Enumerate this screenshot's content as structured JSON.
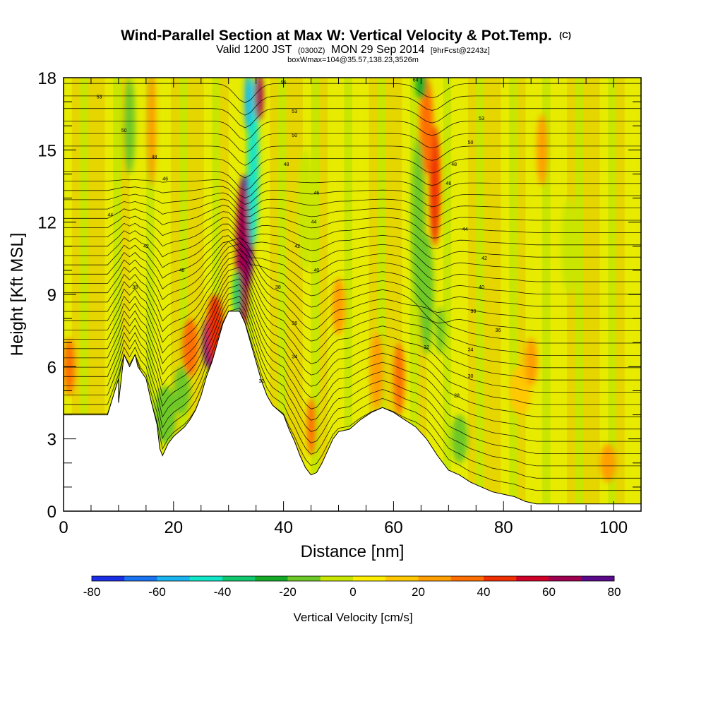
{
  "chart_data": {
    "type": "heatmap",
    "title": "Wind-Parallel Section at Max W: Vertical Velocity & Pot.Temp.",
    "title_superscript": "(C)",
    "subtitle_prefix": "Valid 1200 JST",
    "subtitle_zulu": "(0300Z)",
    "subtitle_date": "MON 29 Sep 2014",
    "subtitle_fcst": "[9hrFcst@2243z]",
    "subtitle_box": "boxWmax=104@35.57,138.23,3526m",
    "xlabel": "Distance [nm]",
    "ylabel": "Height [Kft MSL]",
    "xlim": [
      0,
      105
    ],
    "ylim": [
      0,
      18
    ],
    "x_ticks": [
      0,
      20,
      40,
      60,
      80,
      100
    ],
    "y_ticks": [
      0,
      3,
      6,
      9,
      12,
      15,
      18
    ],
    "colorbar": {
      "label": "Vertical Velocity [cm/s]",
      "range": [
        -80,
        80
      ],
      "step": 10,
      "ticks": [
        -80,
        -60,
        -40,
        -20,
        0,
        20,
        40,
        60,
        80
      ],
      "colors": [
        "#1a2ee6",
        "#1a73f0",
        "#1ab4f0",
        "#12e6c8",
        "#12c86e",
        "#14aa28",
        "#6ec828",
        "#c8e600",
        "#ffee00",
        "#ffc800",
        "#ff9f00",
        "#ff6e00",
        "#f03000",
        "#d00028",
        "#a00050",
        "#5a0a8a"
      ]
    },
    "terrain_profile": [
      [
        0,
        4
      ],
      [
        2,
        4
      ],
      [
        4,
        4
      ],
      [
        6,
        4
      ],
      [
        8,
        4
      ],
      [
        10,
        5.5
      ],
      [
        11,
        6.5
      ],
      [
        13,
        6.5
      ],
      [
        13.5,
        6
      ],
      [
        12,
        6
      ],
      [
        10,
        4.5
      ],
      [
        8,
        4
      ],
      [
        15,
        5.5
      ],
      [
        16,
        4.5
      ],
      [
        17,
        3.6
      ],
      [
        17.5,
        2.6
      ],
      [
        18,
        2.3
      ],
      [
        19,
        2.8
      ],
      [
        20,
        3.1
      ],
      [
        21,
        3.3
      ],
      [
        22,
        3.5
      ],
      [
        23,
        3.8
      ],
      [
        24,
        4.2
      ],
      [
        25,
        4.8
      ],
      [
        26,
        5.6
      ],
      [
        27,
        6.2
      ],
      [
        28,
        7
      ],
      [
        29,
        7.8
      ],
      [
        30,
        8.3
      ],
      [
        31,
        8.3
      ],
      [
        32,
        8.3
      ],
      [
        33,
        7.8
      ],
      [
        34,
        7
      ],
      [
        35,
        6.2
      ],
      [
        36,
        5.4
      ],
      [
        37,
        4.8
      ],
      [
        38,
        4.4
      ],
      [
        39,
        4.2
      ],
      [
        40,
        4
      ],
      [
        41,
        3.4
      ],
      [
        42,
        2.9
      ],
      [
        43,
        2.3
      ],
      [
        44,
        1.8
      ],
      [
        45,
        1.5
      ],
      [
        46,
        1.6
      ],
      [
        47,
        2
      ],
      [
        48,
        2.5
      ],
      [
        49,
        3
      ],
      [
        50,
        3.3
      ],
      [
        52,
        3.4
      ],
      [
        54,
        3.8
      ],
      [
        56,
        4.1
      ],
      [
        58,
        4.3
      ],
      [
        60,
        4.1
      ],
      [
        62,
        3.8
      ],
      [
        64,
        3.5
      ],
      [
        66,
        3
      ],
      [
        68,
        2.3
      ],
      [
        70,
        1.7
      ],
      [
        72,
        1.5
      ],
      [
        74,
        1.2
      ],
      [
        76,
        1
      ],
      [
        78,
        0.8
      ],
      [
        80,
        0.7
      ],
      [
        82,
        0.6
      ],
      [
        84,
        0.4
      ],
      [
        86,
        0.3
      ],
      [
        88,
        0.3
      ],
      [
        90,
        0.3
      ],
      [
        92,
        0.3
      ],
      [
        94,
        0.3
      ],
      [
        96,
        0.3
      ],
      [
        98,
        0.3
      ],
      [
        100,
        0.3
      ],
      [
        102,
        0.3
      ],
      [
        105,
        0.3
      ]
    ],
    "contour_labels": [
      {
        "x": 6.5,
        "y": 17.2,
        "text": "53"
      },
      {
        "x": 11,
        "y": 15.8,
        "text": "50"
      },
      {
        "x": 16.5,
        "y": 14.7,
        "text": "48"
      },
      {
        "x": 18.5,
        "y": 13.8,
        "text": "46"
      },
      {
        "x": 8.5,
        "y": 12.3,
        "text": "44"
      },
      {
        "x": 15,
        "y": 11,
        "text": "42"
      },
      {
        "x": 21.5,
        "y": 10,
        "text": "40"
      },
      {
        "x": 13,
        "y": 9.3,
        "text": "38"
      },
      {
        "x": 40,
        "y": 17.8,
        "text": "56"
      },
      {
        "x": 42,
        "y": 16.6,
        "text": "53"
      },
      {
        "x": 42,
        "y": 15.6,
        "text": "50"
      },
      {
        "x": 40.5,
        "y": 14.4,
        "text": "48"
      },
      {
        "x": 46,
        "y": 13.2,
        "text": "46"
      },
      {
        "x": 45.5,
        "y": 12,
        "text": "44"
      },
      {
        "x": 42.5,
        "y": 11,
        "text": "42"
      },
      {
        "x": 46,
        "y": 10,
        "text": "40"
      },
      {
        "x": 39,
        "y": 9.3,
        "text": "38"
      },
      {
        "x": 42,
        "y": 7.8,
        "text": "36"
      },
      {
        "x": 42,
        "y": 6.4,
        "text": "34"
      },
      {
        "x": 36,
        "y": 5.4,
        "text": "32"
      },
      {
        "x": 64,
        "y": 17.9,
        "text": "64"
      },
      {
        "x": 76,
        "y": 16.3,
        "text": "53"
      },
      {
        "x": 74,
        "y": 15.3,
        "text": "50"
      },
      {
        "x": 71,
        "y": 14.4,
        "text": "48"
      },
      {
        "x": 70,
        "y": 13.6,
        "text": "46"
      },
      {
        "x": 73,
        "y": 11.7,
        "text": "44"
      },
      {
        "x": 76.5,
        "y": 10.5,
        "text": "42"
      },
      {
        "x": 76,
        "y": 9.3,
        "text": "40"
      },
      {
        "x": 74.5,
        "y": 8.3,
        "text": "38"
      },
      {
        "x": 79,
        "y": 7.5,
        "text": "36"
      },
      {
        "x": 66,
        "y": 6.8,
        "text": "32"
      },
      {
        "x": 74,
        "y": 6.7,
        "text": "34"
      },
      {
        "x": 74,
        "y": 5.6,
        "text": "30"
      },
      {
        "x": 71.5,
        "y": 4.8,
        "text": "28"
      }
    ],
    "w_features": [
      {
        "x": 33,
        "y": 11.5,
        "rx": 1.5,
        "ry": 2.5,
        "value": 70
      },
      {
        "x": 32.5,
        "y": 10.5,
        "rx": 1.2,
        "ry": 3.0,
        "value": 60
      },
      {
        "x": 34.5,
        "y": 14.5,
        "rx": 1.0,
        "ry": 3.5,
        "value": -50
      },
      {
        "x": 35.5,
        "y": 17.2,
        "rx": 0.8,
        "ry": 1.0,
        "value": 60
      },
      {
        "x": 33.5,
        "y": 17.0,
        "rx": 0.6,
        "ry": 1.2,
        "value": -60
      },
      {
        "x": 31.5,
        "y": 9.0,
        "rx": 0.7,
        "ry": 1.0,
        "value": -40
      },
      {
        "x": 26.5,
        "y": 7.0,
        "rx": 1.2,
        "ry": 1.1,
        "value": 70
      },
      {
        "x": 27.5,
        "y": 7.5,
        "rx": 1.5,
        "ry": 1.5,
        "value": 40
      },
      {
        "x": 23,
        "y": 6.8,
        "rx": 1.5,
        "ry": 1.2,
        "value": 30
      },
      {
        "x": 18.5,
        "y": 4.0,
        "rx": 2.0,
        "ry": 1.2,
        "value": -20
      },
      {
        "x": 21.5,
        "y": 5.0,
        "rx": 1.5,
        "ry": 1.0,
        "value": -20
      },
      {
        "x": 67.5,
        "y": 13.5,
        "rx": 1.0,
        "ry": 2.5,
        "value": 40
      },
      {
        "x": 66,
        "y": 16.0,
        "rx": 1.2,
        "ry": 2.0,
        "value": 30
      },
      {
        "x": 64.5,
        "y": 12.0,
        "rx": 1.2,
        "ry": 3.5,
        "value": -20
      },
      {
        "x": 66,
        "y": 9.0,
        "rx": 1.3,
        "ry": 2.5,
        "value": -20
      },
      {
        "x": 68.5,
        "y": 7.5,
        "rx": 0.8,
        "ry": 1.0,
        "value": -20
      },
      {
        "x": 65,
        "y": 17.7,
        "rx": 1.0,
        "ry": 0.6,
        "value": -30
      },
      {
        "x": 61,
        "y": 5.5,
        "rx": 1.0,
        "ry": 1.5,
        "value": 30
      },
      {
        "x": 57,
        "y": 5.8,
        "rx": 1.2,
        "ry": 1.6,
        "value": 20
      },
      {
        "x": 44,
        "y": 12.5,
        "rx": 1.5,
        "ry": 2.5,
        "value": -10
      },
      {
        "x": 45,
        "y": 3.5,
        "rx": 0.8,
        "ry": 1.2,
        "value": 30
      },
      {
        "x": 72,
        "y": 3.0,
        "rx": 1.5,
        "ry": 1.0,
        "value": -20
      },
      {
        "x": 83,
        "y": 5.0,
        "rx": 2.0,
        "ry": 1.0,
        "value": 10
      },
      {
        "x": 1,
        "y": 6.0,
        "rx": 1.0,
        "ry": 1.2,
        "value": 30
      },
      {
        "x": 12,
        "y": 16.0,
        "rx": 1.0,
        "ry": 2.0,
        "value": -20
      },
      {
        "x": 16,
        "y": 16.0,
        "rx": 0.8,
        "ry": 2.5,
        "value": 20
      },
      {
        "x": 87,
        "y": 15.0,
        "rx": 1.0,
        "ry": 1.5,
        "value": 20
      },
      {
        "x": 92,
        "y": 11.0,
        "rx": 1.5,
        "ry": 2.0,
        "value": -10
      },
      {
        "x": 85,
        "y": 6.2,
        "rx": 1.2,
        "ry": 1.0,
        "value": 20
      },
      {
        "x": 50,
        "y": 8.5,
        "rx": 1.2,
        "ry": 1.2,
        "value": 20
      },
      {
        "x": 99,
        "y": 2.0,
        "rx": 1.5,
        "ry": 0.8,
        "value": 20
      }
    ]
  }
}
